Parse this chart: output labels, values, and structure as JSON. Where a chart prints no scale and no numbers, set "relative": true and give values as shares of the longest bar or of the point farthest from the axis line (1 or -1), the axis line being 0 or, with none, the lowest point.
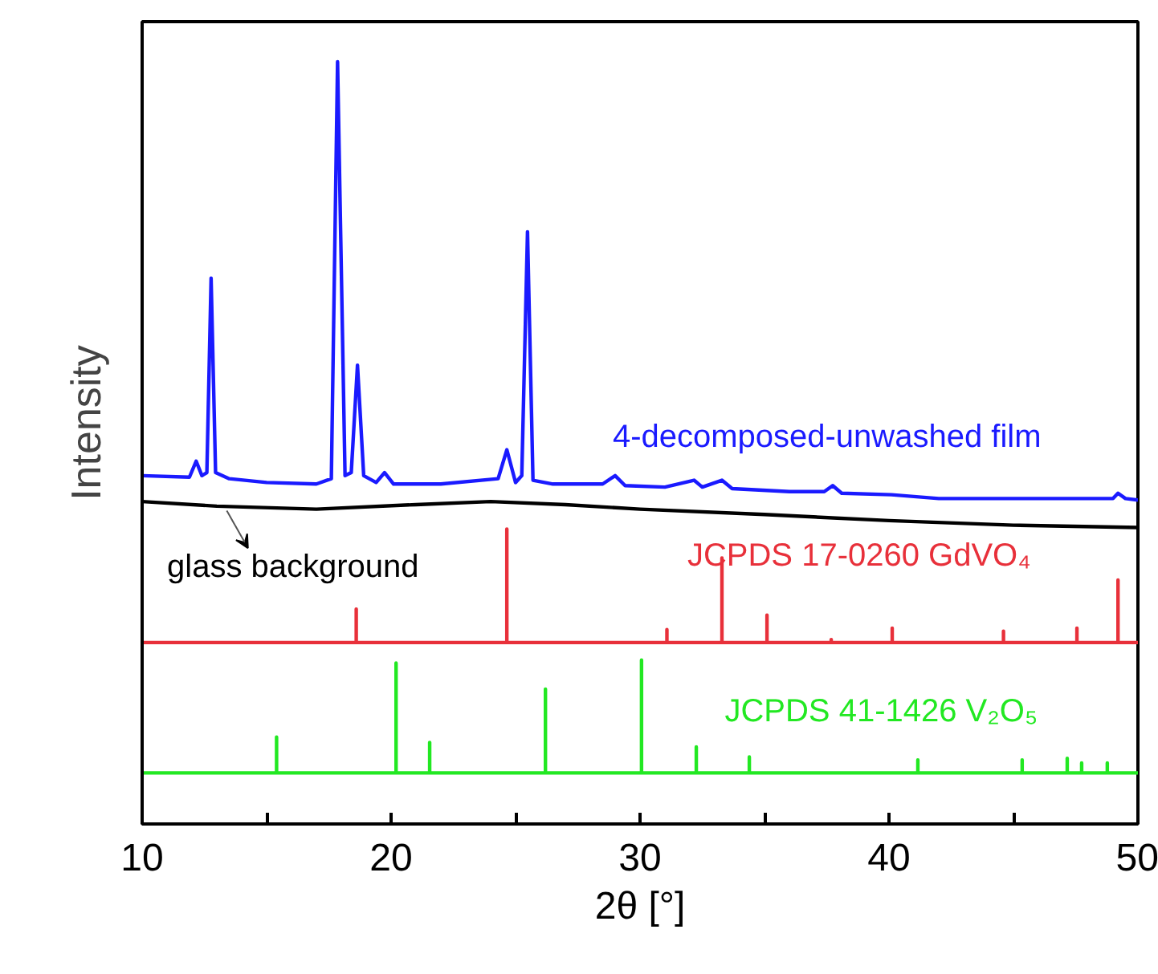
{
  "chart_data": {
    "type": "line",
    "xlabel": "2θ [°]",
    "ylabel": "Intensity",
    "relative": true,
    "grid": false,
    "tick_labels": "x",
    "marker": "none",
    "line_style": "solid",
    "xlim": [
      10,
      50
    ],
    "xticks": [
      10,
      {
        "value": 15,
        "label": null
      },
      20,
      {
        "value": 25,
        "label": null
      },
      30,
      {
        "value": 35,
        "label": null
      },
      40,
      {
        "value": 45,
        "label": null
      },
      50
    ],
    "series": [
      {
        "name": "4-decomposed-unwashed film",
        "color": "#1a1aff",
        "x": [
          10,
          11.9,
          12.17,
          12.4,
          12.6,
          12.77,
          12.95,
          13.5,
          15,
          17,
          17.6,
          17.85,
          18.15,
          18.4,
          18.65,
          18.9,
          19.4,
          19.74,
          20.1,
          22,
          24.3,
          24.65,
          25.0,
          25.25,
          25.48,
          25.7,
          26.5,
          28.5,
          29.0,
          29.4,
          31,
          32.17,
          32.5,
          33.29,
          33.7,
          36,
          37.4,
          37.74,
          38.1,
          40.1,
          42,
          46,
          49.0,
          49.2,
          49.5,
          50
        ],
        "values": [
          0.457,
          0.455,
          0.476,
          0.457,
          0.461,
          0.716,
          0.461,
          0.453,
          0.448,
          0.446,
          0.453,
          1,
          0.457,
          0.461,
          0.602,
          0.457,
          0.448,
          0.461,
          0.446,
          0.446,
          0.453,
          0.491,
          0.448,
          0.457,
          0.777,
          0.451,
          0.446,
          0.446,
          0.457,
          0.444,
          0.442,
          0.451,
          0.442,
          0.451,
          0.44,
          0.436,
          0.436,
          0.444,
          0.434,
          0.432,
          0.427,
          0.427,
          0.427,
          0.434,
          0.427,
          0.425
        ]
      },
      {
        "name": "glass background",
        "color": "#000000",
        "x": [
          10,
          13,
          17,
          21,
          24,
          27,
          30,
          35,
          40,
          45,
          50
        ],
        "values": [
          0.423,
          0.417,
          0.413,
          0.419,
          0.423,
          0.419,
          0.413,
          0.406,
          0.398,
          0.392,
          0.389
        ]
      },
      {
        "name": "JCPDS 17-0260 GdVO₄",
        "color": "#e8303a",
        "x": [
          10,
          18.6,
          18.6,
          18.6,
          24.65,
          24.65,
          24.65,
          31.08,
          31.08,
          31.08,
          33.29,
          33.29,
          33.29,
          35.1,
          35.1,
          35.1,
          37.68,
          37.68,
          37.68,
          40.13,
          40.13,
          40.13,
          44.6,
          44.6,
          44.6,
          47.55,
          47.55,
          47.55,
          49.2,
          49.2,
          49.2,
          50
        ],
        "values": [
          0.238,
          0.238,
          0.282,
          0.238,
          0.238,
          0.387,
          0.238,
          0.238,
          0.255,
          0.238,
          0.238,
          0.349,
          0.238,
          0.238,
          0.274,
          0.238,
          0.238,
          0.242,
          0.238,
          0.238,
          0.257,
          0.238,
          0.238,
          0.253,
          0.238,
          0.238,
          0.257,
          0.238,
          0.238,
          0.32,
          0.238,
          0.238
        ]
      },
      {
        "name": "JCPDS 41-1426 V₂O₅",
        "color": "#22e822",
        "x": [
          10,
          15.4,
          15.4,
          15.4,
          20.2,
          20.2,
          20.2,
          21.55,
          21.55,
          21.55,
          26.2,
          26.2,
          26.2,
          30.06,
          30.06,
          30.06,
          32.26,
          32.26,
          32.26,
          34.39,
          34.39,
          34.39,
          41.16,
          41.16,
          41.16,
          45.35,
          45.35,
          45.35,
          47.16,
          47.16,
          47.16,
          47.74,
          47.74,
          47.74,
          48.77,
          48.77,
          48.77,
          50
        ],
        "values": [
          0.067,
          0.067,
          0.114,
          0.067,
          0.067,
          0.211,
          0.067,
          0.067,
          0.107,
          0.067,
          0.067,
          0.177,
          0.067,
          0.067,
          0.215,
          0.067,
          0.067,
          0.101,
          0.067,
          0.067,
          0.088,
          0.067,
          0.067,
          0.084,
          0.067,
          0.067,
          0.084,
          0.067,
          0.067,
          0.086,
          0.067,
          0.067,
          0.08,
          0.067,
          0.067,
          0.08,
          0.067,
          0.067
        ]
      }
    ]
  }
}
